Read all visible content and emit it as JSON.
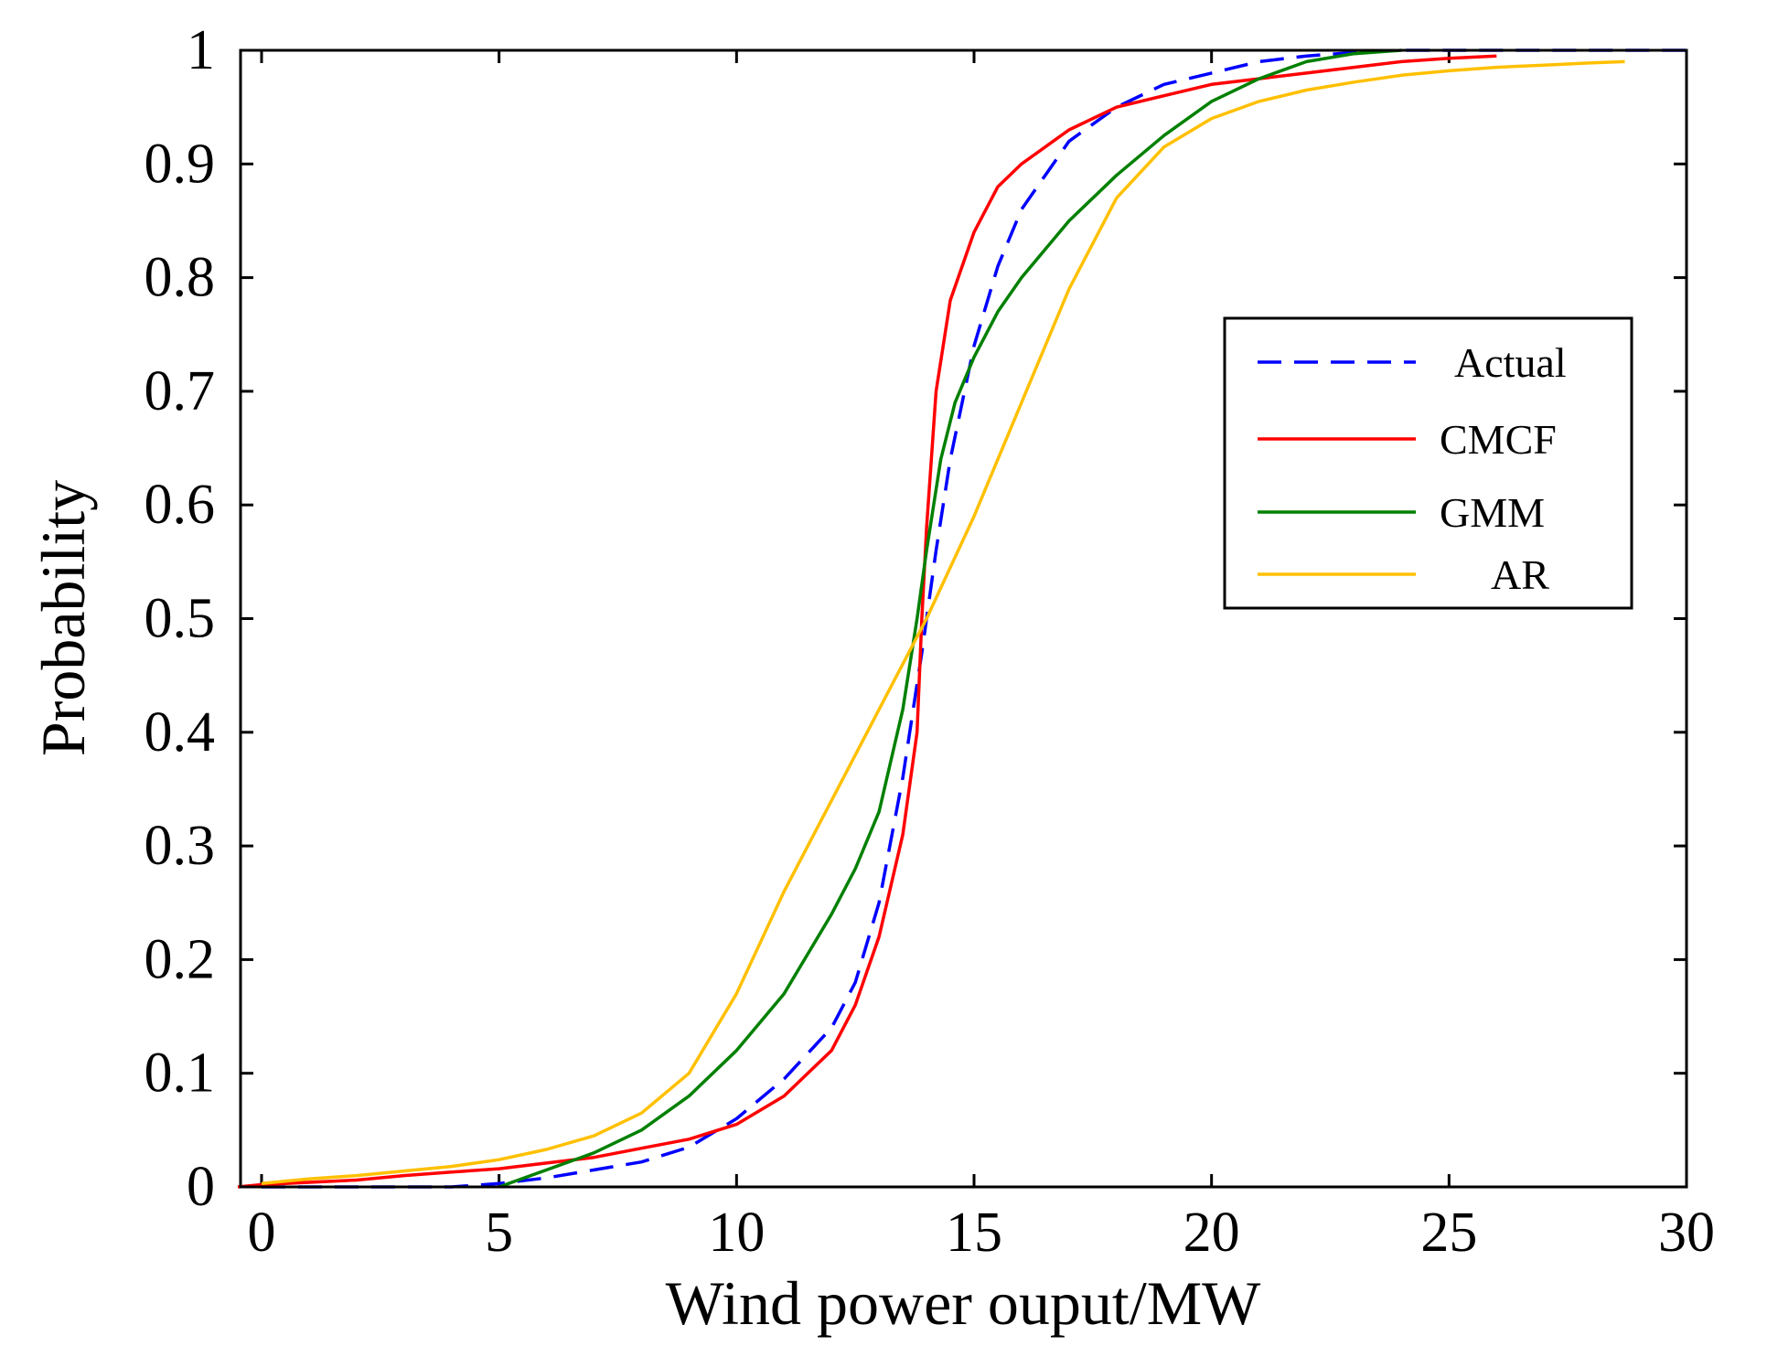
{
  "chart_data": {
    "type": "line",
    "title": "",
    "xlabel": "Wind power ouput/MW",
    "ylabel": "Probability",
    "xlim": [
      0,
      30
    ],
    "ylim": [
      0,
      1
    ],
    "xticks": [
      0,
      5,
      10,
      15,
      20,
      25,
      30
    ],
    "xtick_labels": [
      "0",
      "5",
      "10",
      "15",
      "20",
      "25",
      "30"
    ],
    "yticks": [
      0,
      0.1,
      0.2,
      0.3,
      0.4,
      0.5,
      0.6,
      0.7,
      0.8,
      0.9,
      1
    ],
    "ytick_labels": [
      "0",
      "0.1",
      "0.2",
      "0.3",
      "0.4",
      "0.5",
      "0.6",
      "0.7",
      "0.8",
      "0.9",
      "1"
    ],
    "grid": false,
    "legend_position": "right",
    "series": [
      {
        "name": "Actual",
        "color": "#0000ff",
        "dash": "dashed",
        "x": [
          0,
          4,
          5,
          6,
          7,
          8,
          9,
          10,
          11,
          12,
          12.5,
          13,
          13.5,
          13.9,
          14.2,
          14.5,
          15,
          15.5,
          16,
          17,
          18,
          19,
          20,
          21,
          22,
          23,
          24,
          25,
          30
        ],
        "y": [
          0,
          0,
          0.003,
          0.008,
          0.015,
          0.022,
          0.035,
          0.06,
          0.095,
          0.14,
          0.18,
          0.25,
          0.36,
          0.47,
          0.56,
          0.64,
          0.74,
          0.81,
          0.86,
          0.92,
          0.95,
          0.97,
          0.98,
          0.99,
          0.995,
          0.998,
          1,
          1,
          1
        ]
      },
      {
        "name": "CMCF",
        "color": "#ff0000",
        "dash": "solid",
        "x": [
          -0.5,
          0,
          1,
          2,
          3,
          4,
          5,
          6,
          7,
          8,
          9,
          10,
          11,
          12,
          12.5,
          13,
          13.5,
          13.8,
          13.9,
          14,
          14.2,
          14.5,
          15,
          15.5,
          16,
          17,
          18,
          19,
          20,
          21,
          22,
          23,
          24,
          25,
          26
        ],
        "y": [
          0,
          0.002,
          0.004,
          0.006,
          0.01,
          0.013,
          0.016,
          0.021,
          0.026,
          0.034,
          0.042,
          0.055,
          0.08,
          0.12,
          0.16,
          0.22,
          0.31,
          0.4,
          0.5,
          0.58,
          0.7,
          0.78,
          0.84,
          0.88,
          0.9,
          0.93,
          0.95,
          0.96,
          0.97,
          0.975,
          0.98,
          0.985,
          0.99,
          0.993,
          0.995
        ]
      },
      {
        "name": "GMM",
        "color": "#008000",
        "dash": "solid",
        "x": [
          5,
          6,
          7,
          8,
          9,
          10,
          11,
          12,
          12.5,
          13,
          13.5,
          13.8,
          14,
          14.3,
          14.6,
          15,
          15.5,
          16,
          17,
          18,
          19,
          20,
          21,
          22,
          23,
          24
        ],
        "y": [
          0,
          0.015,
          0.03,
          0.05,
          0.08,
          0.12,
          0.17,
          0.24,
          0.28,
          0.33,
          0.42,
          0.5,
          0.56,
          0.64,
          0.69,
          0.73,
          0.77,
          0.8,
          0.85,
          0.89,
          0.925,
          0.955,
          0.975,
          0.99,
          0.997,
          1
        ]
      },
      {
        "name": "AR",
        "color": "#ffc000",
        "dash": "solid",
        "x": [
          0,
          1,
          2,
          3,
          4,
          5,
          6,
          7,
          8,
          9,
          10,
          11,
          12,
          13,
          14,
          15,
          16,
          17,
          18,
          19,
          20,
          21,
          22,
          23,
          24,
          25,
          26,
          27,
          28,
          28.7
        ],
        "y": [
          0.003,
          0.007,
          0.01,
          0.014,
          0.018,
          0.024,
          0.033,
          0.045,
          0.065,
          0.1,
          0.17,
          0.26,
          0.34,
          0.42,
          0.5,
          0.59,
          0.69,
          0.79,
          0.87,
          0.915,
          0.94,
          0.955,
          0.965,
          0.972,
          0.978,
          0.982,
          0.985,
          0.987,
          0.989,
          0.99
        ]
      }
    ]
  }
}
